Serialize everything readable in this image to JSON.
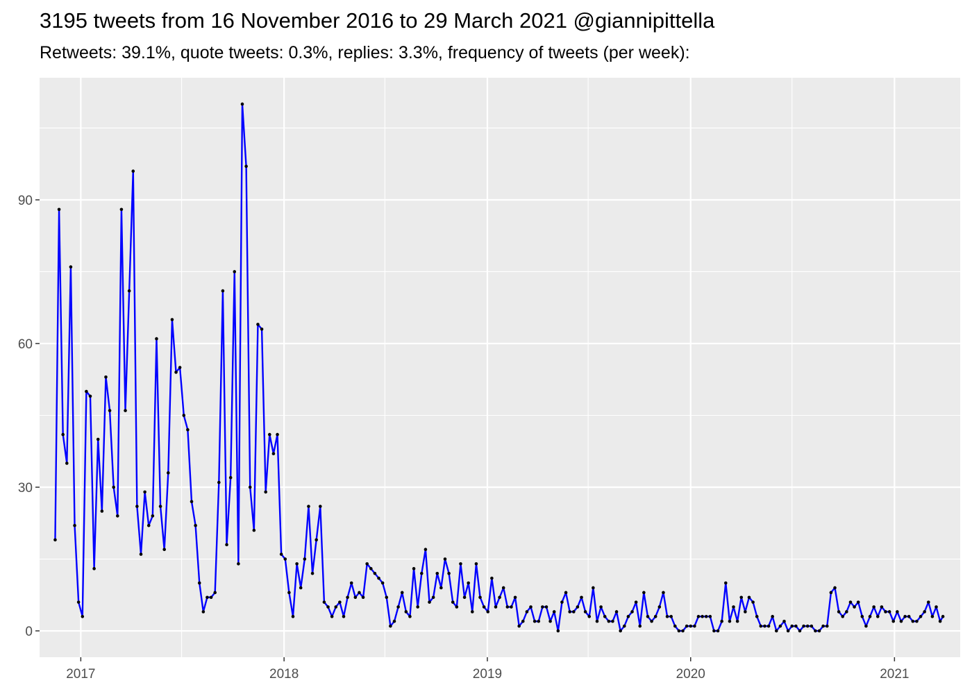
{
  "chart_data": {
    "type": "line",
    "title": "3195 tweets from 16 November 2016 to 29 March 2021 @giannipittella",
    "subtitle": "Retweets: 39.1%, quote tweets: 0.3%, replies: 3.3%, frequency of tweets (per week):",
    "xlabel": "",
    "ylabel": "",
    "x_tick_labels": [
      "2017",
      "2018",
      "2019",
      "2020",
      "2021"
    ],
    "y_tick_labels": [
      "0",
      "30",
      "60",
      "90"
    ],
    "y_ticks": [
      0,
      30,
      60,
      90
    ],
    "xlim": [
      "2016-10-19",
      "2021-04-29"
    ],
    "ylim": [
      -5.5,
      115.5
    ],
    "grid": true,
    "point_color": "#000000",
    "series": [
      {
        "color": "#0000ff",
        "x": [
          "2016-11-16",
          "2016-11-23",
          "2016-11-30",
          "2016-12-07",
          "2016-12-14",
          "2016-12-21",
          "2016-12-28",
          "2017-01-04",
          "2017-01-11",
          "2017-01-18",
          "2017-01-25",
          "2017-02-01",
          "2017-02-08",
          "2017-02-15",
          "2017-02-22",
          "2017-03-01",
          "2017-03-08",
          "2017-03-15",
          "2017-03-22",
          "2017-03-29",
          "2017-04-05",
          "2017-04-12",
          "2017-04-19",
          "2017-04-26",
          "2017-05-03",
          "2017-05-10",
          "2017-05-17",
          "2017-05-24",
          "2017-05-31",
          "2017-06-07",
          "2017-06-14",
          "2017-06-21",
          "2017-06-28",
          "2017-07-05",
          "2017-07-12",
          "2017-07-19",
          "2017-07-26",
          "2017-08-02",
          "2017-08-09",
          "2017-08-16",
          "2017-08-23",
          "2017-08-30",
          "2017-09-06",
          "2017-09-13",
          "2017-09-20",
          "2017-09-27",
          "2017-10-04",
          "2017-10-11",
          "2017-10-18",
          "2017-10-25",
          "2017-11-01",
          "2017-11-08",
          "2017-11-15",
          "2017-11-22",
          "2017-11-29",
          "2017-12-06",
          "2017-12-13",
          "2017-12-20",
          "2017-12-27",
          "2018-01-03",
          "2018-01-10",
          "2018-01-17",
          "2018-01-24",
          "2018-01-31",
          "2018-02-07",
          "2018-02-14",
          "2018-02-21",
          "2018-02-28",
          "2018-03-07",
          "2018-03-14",
          "2018-03-21",
          "2018-03-28",
          "2018-04-04",
          "2018-04-11",
          "2018-04-18",
          "2018-04-25",
          "2018-05-02",
          "2018-05-09",
          "2018-05-16",
          "2018-05-23",
          "2018-05-30",
          "2018-06-06",
          "2018-06-13",
          "2018-06-20",
          "2018-06-27",
          "2018-07-04",
          "2018-07-11",
          "2018-07-18",
          "2018-07-25",
          "2018-08-01",
          "2018-08-08",
          "2018-08-15",
          "2018-08-22",
          "2018-08-29",
          "2018-09-05",
          "2018-09-12",
          "2018-09-19",
          "2018-09-26",
          "2018-10-03",
          "2018-10-10",
          "2018-10-17",
          "2018-10-24",
          "2018-10-31",
          "2018-11-07",
          "2018-11-14",
          "2018-11-21",
          "2018-11-28",
          "2018-12-05",
          "2018-12-12",
          "2018-12-19",
          "2018-12-26",
          "2019-01-02",
          "2019-01-09",
          "2019-01-16",
          "2019-01-23",
          "2019-01-30",
          "2019-02-06",
          "2019-02-13",
          "2019-02-20",
          "2019-02-27",
          "2019-03-06",
          "2019-03-13",
          "2019-03-20",
          "2019-03-27",
          "2019-04-03",
          "2019-04-10",
          "2019-04-17",
          "2019-04-24",
          "2019-05-01",
          "2019-05-08",
          "2019-05-15",
          "2019-05-22",
          "2019-05-29",
          "2019-06-05",
          "2019-06-12",
          "2019-06-19",
          "2019-06-26",
          "2019-07-03",
          "2019-07-10",
          "2019-07-17",
          "2019-07-24",
          "2019-07-31",
          "2019-08-07",
          "2019-08-14",
          "2019-08-21",
          "2019-08-28",
          "2019-09-04",
          "2019-09-11",
          "2019-09-18",
          "2019-09-25",
          "2019-10-02",
          "2019-10-09",
          "2019-10-16",
          "2019-10-23",
          "2019-10-30",
          "2019-11-06",
          "2019-11-13",
          "2019-11-20",
          "2019-11-27",
          "2019-12-04",
          "2019-12-11",
          "2019-12-18",
          "2019-12-25",
          "2020-01-01",
          "2020-01-08",
          "2020-01-15",
          "2020-01-22",
          "2020-01-29",
          "2020-02-05",
          "2020-02-12",
          "2020-02-19",
          "2020-02-26",
          "2020-03-04",
          "2020-03-11",
          "2020-03-18",
          "2020-03-25",
          "2020-04-01",
          "2020-04-08",
          "2020-04-15",
          "2020-04-22",
          "2020-04-29",
          "2020-05-06",
          "2020-05-13",
          "2020-05-20",
          "2020-05-27",
          "2020-06-03",
          "2020-06-10",
          "2020-06-17",
          "2020-06-24",
          "2020-07-01",
          "2020-07-08",
          "2020-07-15",
          "2020-07-22",
          "2020-07-29",
          "2020-08-05",
          "2020-08-12",
          "2020-08-19",
          "2020-08-26",
          "2020-09-02",
          "2020-09-09",
          "2020-09-16",
          "2020-09-23",
          "2020-09-30",
          "2020-10-07",
          "2020-10-14",
          "2020-10-21",
          "2020-10-28",
          "2020-11-04",
          "2020-11-11",
          "2020-11-18",
          "2020-11-25",
          "2020-12-02",
          "2020-12-09",
          "2020-12-16",
          "2020-12-23",
          "2020-12-30",
          "2021-01-06",
          "2021-01-13",
          "2021-01-20",
          "2021-01-27",
          "2021-02-03",
          "2021-02-10",
          "2021-02-17",
          "2021-02-24",
          "2021-03-03",
          "2021-03-10",
          "2021-03-17",
          "2021-03-24",
          "2021-03-29"
        ],
        "values": [
          19,
          88,
          41,
          35,
          76,
          22,
          6,
          3,
          50,
          49,
          13,
          40,
          25,
          53,
          46,
          30,
          24,
          88,
          46,
          71,
          96,
          26,
          16,
          29,
          22,
          24,
          61,
          26,
          17,
          33,
          65,
          54,
          55,
          45,
          42,
          27,
          22,
          10,
          4,
          7,
          7,
          8,
          31,
          71,
          18,
          32,
          75,
          14,
          110,
          97,
          30,
          21,
          64,
          63,
          29,
          41,
          37,
          41,
          16,
          15,
          8,
          3,
          14,
          9,
          15,
          26,
          12,
          19,
          26,
          6,
          5,
          3,
          5,
          6,
          3,
          7,
          10,
          7,
          8,
          7,
          14,
          13,
          12,
          11,
          10,
          7,
          1,
          2,
          5,
          8,
          4,
          3,
          13,
          5,
          12,
          17,
          6,
          7,
          12,
          9,
          15,
          12,
          6,
          5,
          14,
          7,
          10,
          4,
          14,
          7,
          5,
          4,
          11,
          5,
          7,
          9,
          5,
          5,
          7,
          1,
          2,
          4,
          5,
          2,
          2,
          5,
          5,
          2,
          4,
          0,
          6,
          8,
          4,
          4,
          5,
          7,
          4,
          3,
          9,
          2,
          5,
          3,
          2,
          2,
          4,
          0,
          1,
          3,
          4,
          6,
          1,
          8,
          3,
          2,
          3,
          5,
          8,
          3,
          3,
          1,
          0,
          0,
          1,
          1,
          1,
          3,
          3,
          3,
          3,
          0,
          0,
          2,
          10,
          2,
          5,
          2,
          7,
          4,
          7,
          6,
          3,
          1,
          1,
          1,
          3,
          0,
          1,
          2,
          0,
          1,
          1,
          0,
          1,
          1,
          1,
          0,
          0,
          1,
          1,
          8,
          9,
          4,
          3,
          4,
          6,
          5,
          6,
          3,
          1,
          3,
          5,
          3,
          5,
          4,
          4,
          2,
          4,
          2,
          3,
          3,
          2,
          2,
          3,
          4,
          6,
          3,
          5,
          2,
          3
        ]
      }
    ]
  }
}
